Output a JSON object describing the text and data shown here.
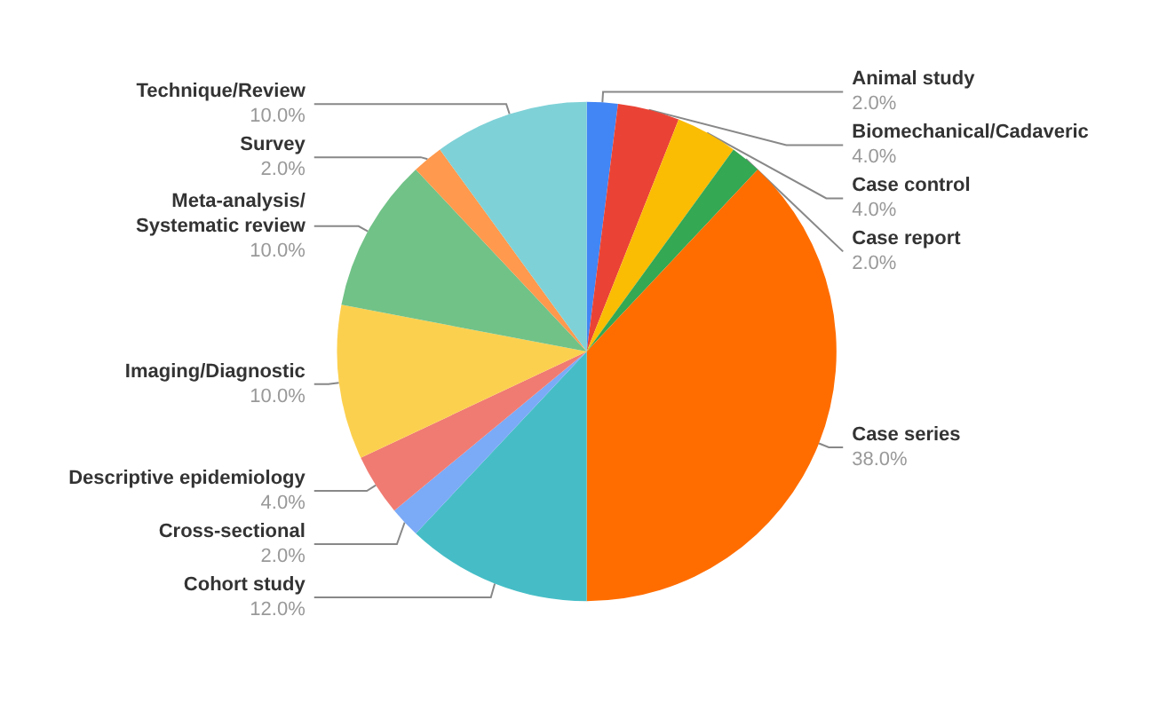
{
  "chart_data": {
    "type": "pie",
    "categories": [
      "Animal study",
      "Biomechanical/Cadaveric",
      "Case control",
      "Case report",
      "Case series",
      "Cohort study",
      "Cross-sectional",
      "Descriptive epidemiology",
      "Imaging/Diagnostic",
      "Meta-analysis/\nSystematic review",
      "Survey",
      "Technique/Review"
    ],
    "values": [
      2,
      4,
      4,
      2,
      38,
      12,
      2,
      4,
      10,
      10,
      2,
      10
    ],
    "value_labels": [
      "2.0%",
      "4.0%",
      "4.0%",
      "2.0%",
      "38.0%",
      "12.0%",
      "2.0%",
      "4.0%",
      "10.0%",
      "10.0%",
      "2.0%",
      "10.0%"
    ],
    "colors": [
      "#4285f4",
      "#ea4335",
      "#fbbc04",
      "#34a853",
      "#ff6d01",
      "#46bdc6",
      "#7baaf7",
      "#f07b72",
      "#fcd04f",
      "#71c287",
      "#ff994d",
      "#7ed1d7"
    ],
    "legend": false
  }
}
